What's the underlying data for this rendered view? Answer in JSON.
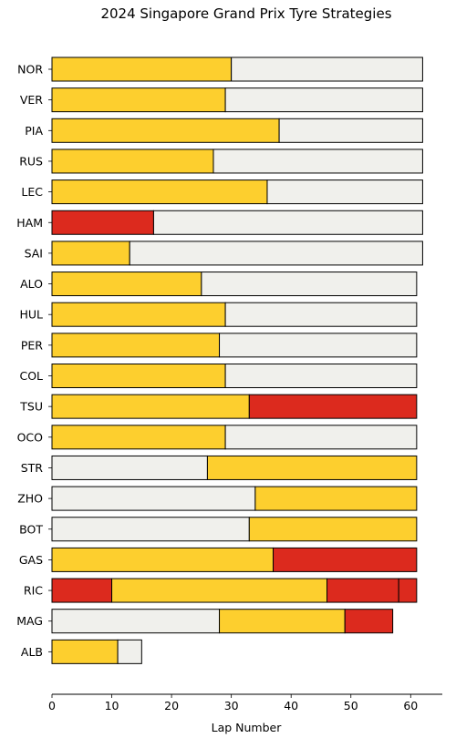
{
  "chart_data": {
    "type": "bar",
    "orientation": "horizontal-stacked",
    "title": "2024 Singapore Grand Prix Tyre Strategies",
    "xlabel": "Lap Number",
    "ylabel": "",
    "xlim": [
      0,
      65
    ],
    "xticks": [
      "0",
      "10",
      "20",
      "30",
      "40",
      "50",
      "60"
    ],
    "grid": false,
    "legend": "none",
    "compound_colors": {
      "MEDIUM": "#fdcf2e",
      "HARD": "#f0f0ec",
      "SOFT": "#dc2a1e"
    },
    "drivers": [
      {
        "name": "NOR",
        "stints": [
          {
            "compound": "MEDIUM",
            "start": 0,
            "end": 30
          },
          {
            "compound": "HARD",
            "start": 30,
            "end": 62
          }
        ]
      },
      {
        "name": "VER",
        "stints": [
          {
            "compound": "MEDIUM",
            "start": 0,
            "end": 29
          },
          {
            "compound": "HARD",
            "start": 29,
            "end": 62
          }
        ]
      },
      {
        "name": "PIA",
        "stints": [
          {
            "compound": "MEDIUM",
            "start": 0,
            "end": 38
          },
          {
            "compound": "HARD",
            "start": 38,
            "end": 62
          }
        ]
      },
      {
        "name": "RUS",
        "stints": [
          {
            "compound": "MEDIUM",
            "start": 0,
            "end": 27
          },
          {
            "compound": "HARD",
            "start": 27,
            "end": 62
          }
        ]
      },
      {
        "name": "LEC",
        "stints": [
          {
            "compound": "MEDIUM",
            "start": 0,
            "end": 36
          },
          {
            "compound": "HARD",
            "start": 36,
            "end": 62
          }
        ]
      },
      {
        "name": "HAM",
        "stints": [
          {
            "compound": "SOFT",
            "start": 0,
            "end": 17
          },
          {
            "compound": "HARD",
            "start": 17,
            "end": 62
          }
        ]
      },
      {
        "name": "SAI",
        "stints": [
          {
            "compound": "MEDIUM",
            "start": 0,
            "end": 13
          },
          {
            "compound": "HARD",
            "start": 13,
            "end": 62
          }
        ]
      },
      {
        "name": "ALO",
        "stints": [
          {
            "compound": "MEDIUM",
            "start": 0,
            "end": 25
          },
          {
            "compound": "HARD",
            "start": 25,
            "end": 61
          }
        ]
      },
      {
        "name": "HUL",
        "stints": [
          {
            "compound": "MEDIUM",
            "start": 0,
            "end": 29
          },
          {
            "compound": "HARD",
            "start": 29,
            "end": 61
          }
        ]
      },
      {
        "name": "PER",
        "stints": [
          {
            "compound": "MEDIUM",
            "start": 0,
            "end": 28
          },
          {
            "compound": "HARD",
            "start": 28,
            "end": 61
          }
        ]
      },
      {
        "name": "COL",
        "stints": [
          {
            "compound": "MEDIUM",
            "start": 0,
            "end": 29
          },
          {
            "compound": "HARD",
            "start": 29,
            "end": 61
          }
        ]
      },
      {
        "name": "TSU",
        "stints": [
          {
            "compound": "MEDIUM",
            "start": 0,
            "end": 33
          },
          {
            "compound": "SOFT",
            "start": 33,
            "end": 61
          }
        ]
      },
      {
        "name": "OCO",
        "stints": [
          {
            "compound": "MEDIUM",
            "start": 0,
            "end": 29
          },
          {
            "compound": "HARD",
            "start": 29,
            "end": 61
          }
        ]
      },
      {
        "name": "STR",
        "stints": [
          {
            "compound": "HARD",
            "start": 0,
            "end": 26
          },
          {
            "compound": "MEDIUM",
            "start": 26,
            "end": 61
          }
        ]
      },
      {
        "name": "ZHO",
        "stints": [
          {
            "compound": "HARD",
            "start": 0,
            "end": 34
          },
          {
            "compound": "MEDIUM",
            "start": 34,
            "end": 61
          }
        ]
      },
      {
        "name": "BOT",
        "stints": [
          {
            "compound": "HARD",
            "start": 0,
            "end": 33
          },
          {
            "compound": "MEDIUM",
            "start": 33,
            "end": 61
          }
        ]
      },
      {
        "name": "GAS",
        "stints": [
          {
            "compound": "MEDIUM",
            "start": 0,
            "end": 37
          },
          {
            "compound": "SOFT",
            "start": 37,
            "end": 61
          }
        ]
      },
      {
        "name": "RIC",
        "stints": [
          {
            "compound": "SOFT",
            "start": 0,
            "end": 10
          },
          {
            "compound": "MEDIUM",
            "start": 10,
            "end": 46
          },
          {
            "compound": "SOFT",
            "start": 46,
            "end": 58
          },
          {
            "compound": "SOFT",
            "start": 58,
            "end": 61
          }
        ]
      },
      {
        "name": "MAG",
        "stints": [
          {
            "compound": "HARD",
            "start": 0,
            "end": 28
          },
          {
            "compound": "MEDIUM",
            "start": 28,
            "end": 49
          },
          {
            "compound": "SOFT",
            "start": 49,
            "end": 57
          }
        ]
      },
      {
        "name": "ALB",
        "stints": [
          {
            "compound": "MEDIUM",
            "start": 0,
            "end": 11
          },
          {
            "compound": "HARD",
            "start": 11,
            "end": 15
          }
        ]
      }
    ]
  }
}
